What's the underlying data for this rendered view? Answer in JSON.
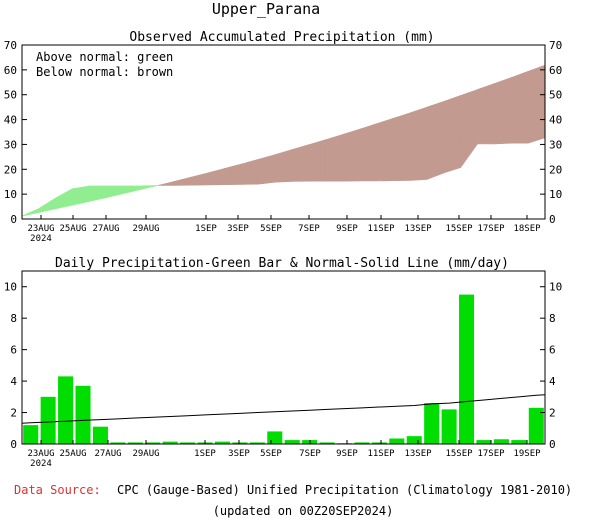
{
  "header": {
    "title": "Upper_Parana"
  },
  "footer": {
    "source_label": "Data Source:",
    "source_text": "CPC (Gauge-Based) Unified Precipitation (Climatology 1981-2010)",
    "updated": "(updated on 00Z20SEP2024)"
  },
  "colors": {
    "above_normal": "#90ee90",
    "below_normal": "#c39a90",
    "bar": "#00dd00",
    "source_label": "#e03030"
  },
  "chart_data": [
    {
      "type": "area",
      "title": "Observed Accumulated Precipitation (mm)",
      "legend": [
        "Above normal: green",
        "Below normal: brown"
      ],
      "legend_position": "top-left",
      "ylim": [
        0,
        70
      ],
      "yticks": [
        0,
        10,
        20,
        30,
        40,
        50,
        60,
        70
      ],
      "x_labels": [
        "23AUG",
        "25AUG",
        "27AUG",
        "29AUG",
        "1SEP",
        "3SEP",
        "5SEP",
        "7SEP",
        "9SEP",
        "11SEP",
        "13SEP",
        "15SEP",
        "17SEP",
        "18SEP"
      ],
      "x_sublabel": "2024",
      "series": [
        {
          "name": "Observed",
          "values": [
            1.2,
            4.2,
            8.5,
            12.2,
            13.3,
            13.3,
            13.3,
            13.3,
            13.5,
            13.5,
            13.6,
            13.7,
            13.8,
            13.9,
            14.0,
            14.8,
            15.1,
            15.2,
            15.2,
            15.2,
            15.3,
            15.3,
            15.4,
            15.5,
            15.9,
            18.5,
            20.7,
            30.2,
            30.2,
            30.5,
            30.5,
            32.7
          ]
        },
        {
          "name": "Normal",
          "values": [
            1.2,
            2.6,
            4.1,
            5.6,
            7.1,
            8.6,
            10.2,
            11.8,
            13.4,
            15.1,
            16.8,
            18.5,
            20.3,
            22.1,
            24.0,
            25.9,
            27.9,
            29.9,
            31.9,
            34.0,
            36.1,
            38.3,
            40.5,
            42.7,
            45.0,
            47.3,
            49.7,
            52.1,
            54.5,
            56.9,
            59.4,
            61.9
          ]
        }
      ]
    },
    {
      "type": "bar",
      "title": "Daily Precipitation-Green Bar & Normal-Solid Line (mm/day)",
      "ylim": [
        0,
        11
      ],
      "yticks": [
        0,
        2,
        4,
        6,
        8,
        10
      ],
      "x_labels": [
        "23AUG",
        "25AUG",
        "27AUG",
        "29AUG",
        "1SEP",
        "3SEP",
        "5SEP",
        "7SEP",
        "9SEP",
        "11SEP",
        "13SEP",
        "15SEP",
        "17SEP",
        "19SEP"
      ],
      "x_sublabel": "2024",
      "series": [
        {
          "name": "Daily",
          "values": [
            1.2,
            3.0,
            4.3,
            3.7,
            1.1,
            0.1,
            0.1,
            0.1,
            0.15,
            0.1,
            0.1,
            0.15,
            0.1,
            0.1,
            0.8,
            0.25,
            0.25,
            0.1,
            0.05,
            0.1,
            0.1,
            0.35,
            0.5,
            2.6,
            2.2,
            9.5,
            0.25,
            0.3,
            0.25,
            2.3
          ]
        },
        {
          "name": "Normal",
          "values": [
            1.35,
            1.4,
            1.45,
            1.5,
            1.55,
            1.6,
            1.65,
            1.7,
            1.75,
            1.8,
            1.85,
            1.9,
            1.95,
            2.0,
            2.05,
            2.1,
            2.15,
            2.2,
            2.25,
            2.3,
            2.35,
            2.4,
            2.45,
            2.55,
            2.6,
            2.7,
            2.8,
            2.9,
            3.0,
            3.1
          ]
        }
      ]
    }
  ]
}
